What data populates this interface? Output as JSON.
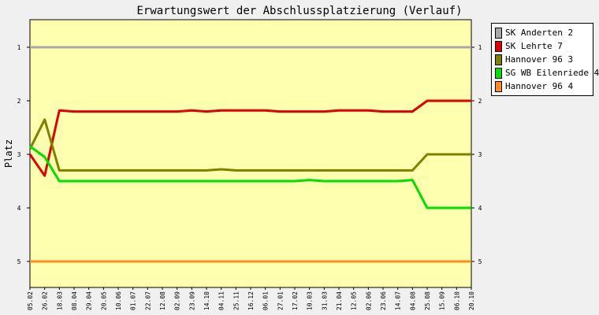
{
  "chart_data": {
    "type": "line",
    "title": "Erwartungswert der Abschlussplatzierung (Verlauf)",
    "xlabel": "",
    "ylabel": "Platz",
    "y_ticks": [
      "1",
      "2",
      "3",
      "4",
      "5"
    ],
    "y_inverted": true,
    "ylim": [
      0.5,
      5.5
    ],
    "grid": false,
    "legend_position": "right-top",
    "background": "#FFFFB0",
    "x": [
      "05.02",
      "26.02",
      "18.03",
      "08.04",
      "29.04",
      "20.05",
      "10.06",
      "01.07",
      "22.07",
      "12.08",
      "02.09",
      "23.09",
      "14.10",
      "04.11",
      "25.11",
      "16.12",
      "06.01",
      "27.01",
      "17.02",
      "10.03",
      "31.03",
      "21.04",
      "12.05",
      "02.06",
      "23.06",
      "14.07",
      "04.08",
      "25.08",
      "15.09",
      "06.10",
      "20.10"
    ],
    "series": [
      {
        "name": "SK Anderten 2",
        "color": "#A8A8A8",
        "values": [
          1,
          1,
          1,
          1,
          1,
          1,
          1,
          1,
          1,
          1,
          1,
          1,
          1,
          1,
          1,
          1,
          1,
          1,
          1,
          1,
          1,
          1,
          1,
          1,
          1,
          1,
          1,
          1,
          1,
          1,
          1
        ]
      },
      {
        "name": "SK Lehrte 7",
        "color": "#E00000",
        "values": [
          3.0,
          3.4,
          2.18,
          2.2,
          2.2,
          2.2,
          2.2,
          2.2,
          2.2,
          2.2,
          2.2,
          2.18,
          2.2,
          2.18,
          2.18,
          2.18,
          2.18,
          2.2,
          2.2,
          2.2,
          2.2,
          2.18,
          2.18,
          2.18,
          2.2,
          2.2,
          2.2,
          2.0,
          2.0,
          2.0,
          2.0
        ]
      },
      {
        "name": "Hannover 96 3",
        "color": "#808000",
        "values": [
          2.9,
          2.35,
          3.3,
          3.3,
          3.3,
          3.3,
          3.3,
          3.3,
          3.3,
          3.3,
          3.3,
          3.3,
          3.3,
          3.28,
          3.3,
          3.3,
          3.3,
          3.3,
          3.3,
          3.3,
          3.3,
          3.3,
          3.3,
          3.3,
          3.3,
          3.3,
          3.3,
          3.0,
          3.0,
          3.0,
          3.0
        ]
      },
      {
        "name": "SG WB Eilenriede 4",
        "color": "#00E000",
        "values": [
          2.85,
          3.05,
          3.5,
          3.5,
          3.5,
          3.5,
          3.5,
          3.5,
          3.5,
          3.5,
          3.5,
          3.5,
          3.5,
          3.5,
          3.5,
          3.5,
          3.5,
          3.5,
          3.5,
          3.48,
          3.5,
          3.5,
          3.5,
          3.5,
          3.5,
          3.5,
          3.48,
          4.0,
          4.0,
          4.0,
          4.0
        ]
      },
      {
        "name": "Hannover 96 4",
        "color": "#FF8C20",
        "values": [
          5,
          5,
          5,
          5,
          5,
          5,
          5,
          5,
          5,
          5,
          5,
          5,
          5,
          5,
          5,
          5,
          5,
          5,
          5,
          5,
          5,
          5,
          5,
          5,
          5,
          5,
          5,
          5,
          5,
          5,
          5
        ]
      }
    ]
  }
}
